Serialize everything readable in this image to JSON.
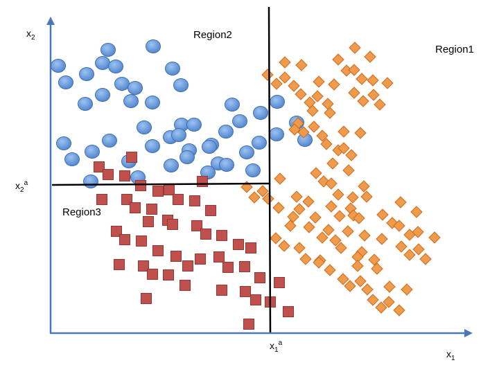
{
  "labels": {
    "region1": "Region1",
    "region2": "Region2",
    "region3": "Region3",
    "x2_axis": "x",
    "x2_axis_sub": "2",
    "x1_axis": "x",
    "x1_axis_sub": "1",
    "x2a_main": "x",
    "x2a_sub": "2",
    "x2a_sup": "a",
    "x1a_main": "x",
    "x1a_sub": "1",
    "x1a_sup": "a"
  },
  "colors": {
    "axis": "#4a7ab5",
    "boundary": "#000000",
    "circle_fill": "#5b8fd6",
    "circle_highlight": "#9cc3f2",
    "circle_stroke": "#3d6fb3",
    "square_fill": "#c0504d",
    "square_stroke": "#943634",
    "diamond_fill": "#f09a4b",
    "diamond_stroke": "#c96d1f"
  },
  "scatter": {
    "circles": [
      [
        156,
        72
      ],
      [
        221,
        67
      ],
      [
        84,
        95
      ],
      [
        148,
        91
      ],
      [
        167,
        96
      ],
      [
        125,
        107
      ],
      [
        249,
        99
      ],
      [
        95,
        119
      ],
      [
        176,
        121
      ],
      [
        195,
        127
      ],
      [
        261,
        123
      ],
      [
        148,
        137
      ],
      [
        123,
        150
      ],
      [
        189,
        146
      ],
      [
        220,
        148
      ],
      [
        335,
        151
      ],
      [
        400,
        147
      ],
      [
        376,
        163
      ],
      [
        208,
        184
      ],
      [
        346,
        175
      ],
      [
        262,
        180
      ],
      [
        246,
        198
      ],
      [
        258,
        195
      ],
      [
        280,
        180
      ],
      [
        326,
        190
      ],
      [
        428,
        177
      ],
      [
        399,
        194
      ],
      [
        440,
        202
      ],
      [
        92,
        207
      ],
      [
        158,
        203
      ],
      [
        220,
        211
      ],
      [
        273,
        217
      ],
      [
        305,
        209
      ],
      [
        302,
        212
      ],
      [
        356,
        220
      ],
      [
        374,
        206
      ],
      [
        104,
        230
      ],
      [
        133,
        219
      ],
      [
        186,
        233
      ],
      [
        270,
        227
      ],
      [
        247,
        239
      ],
      [
        315,
        236
      ],
      [
        327,
        238
      ],
      [
        300,
        249
      ],
      [
        365,
        246
      ],
      [
        199,
        256
      ],
      [
        131,
        262
      ]
    ],
    "squares": [
      [
        190,
        227
      ],
      [
        143,
        241
      ],
      [
        156,
        252
      ],
      [
        180,
        254
      ],
      [
        203,
        268
      ],
      [
        228,
        276
      ],
      [
        244,
        274
      ],
      [
        292,
        262
      ],
      [
        147,
        288
      ],
      [
        183,
        288
      ],
      [
        257,
        288
      ],
      [
        281,
        290
      ],
      [
        195,
        300
      ],
      [
        219,
        302
      ],
      [
        304,
        304
      ],
      [
        214,
        320
      ],
      [
        242,
        318
      ],
      [
        168,
        334
      ],
      [
        249,
        324
      ],
      [
        284,
        326
      ],
      [
        297,
        338
      ],
      [
        320,
        340
      ],
      [
        180,
        346
      ],
      [
        204,
        348
      ],
      [
        344,
        353
      ],
      [
        362,
        358
      ],
      [
        228,
        362
      ],
      [
        254,
        370
      ],
      [
        289,
        374
      ],
      [
        316,
        371
      ],
      [
        172,
        382
      ],
      [
        207,
        384
      ],
      [
        271,
        384
      ],
      [
        329,
        386
      ],
      [
        353,
        385
      ],
      [
        220,
        396
      ],
      [
        243,
        397
      ],
      [
        375,
        401
      ],
      [
        403,
        408
      ],
      [
        267,
        412
      ],
      [
        320,
        419
      ],
      [
        354,
        421
      ],
      [
        369,
        433
      ],
      [
        390,
        436
      ],
      [
        211,
        431
      ],
      [
        416,
        450
      ],
      [
        359,
        468
      ]
    ],
    "diamonds": [
      [
        512,
        69
      ],
      [
        488,
        86
      ],
      [
        534,
        82
      ],
      [
        411,
        90
      ],
      [
        435,
        94
      ],
      [
        500,
        102
      ],
      [
        386,
        108
      ],
      [
        411,
        112
      ],
      [
        511,
        101
      ],
      [
        522,
        114
      ],
      [
        538,
        116
      ],
      [
        559,
        120
      ],
      [
        399,
        121
      ],
      [
        424,
        124
      ],
      [
        460,
        118
      ],
      [
        482,
        122
      ],
      [
        434,
        136
      ],
      [
        458,
        139
      ],
      [
        511,
        134
      ],
      [
        539,
        137
      ],
      [
        447,
        148
      ],
      [
        473,
        150
      ],
      [
        524,
        146
      ],
      [
        548,
        151
      ],
      [
        451,
        160
      ],
      [
        476,
        163
      ],
      [
        430,
        178
      ],
      [
        425,
        187
      ],
      [
        453,
        183
      ],
      [
        438,
        191
      ],
      [
        496,
        190
      ],
      [
        465,
        196
      ],
      [
        520,
        192
      ],
      [
        471,
        208
      ],
      [
        488,
        217
      ],
      [
        507,
        224
      ],
      [
        496,
        214
      ],
      [
        480,
        236
      ],
      [
        503,
        246
      ],
      [
        456,
        250
      ],
      [
        467,
        262
      ],
      [
        478,
        265
      ],
      [
        356,
        270
      ],
      [
        379,
        276
      ],
      [
        404,
        258
      ],
      [
        367,
        285
      ],
      [
        428,
        284
      ],
      [
        445,
        291
      ],
      [
        488,
        281
      ],
      [
        509,
        285
      ],
      [
        525,
        269
      ],
      [
        529,
        284
      ],
      [
        387,
        287
      ],
      [
        402,
        300
      ],
      [
        432,
        302
      ],
      [
        478,
        298
      ],
      [
        506,
        301
      ],
      [
        578,
        292
      ],
      [
        423,
        313
      ],
      [
        455,
        314
      ],
      [
        490,
        312
      ],
      [
        510,
        311
      ],
      [
        518,
        315
      ],
      [
        552,
        310
      ],
      [
        566,
        322
      ],
      [
        601,
        306
      ],
      [
        419,
        326
      ],
      [
        446,
        328
      ],
      [
        474,
        332
      ],
      [
        502,
        334
      ],
      [
        526,
        340
      ],
      [
        576,
        326
      ],
      [
        603,
        335
      ],
      [
        551,
        345
      ],
      [
        591,
        339
      ],
      [
        627,
        343
      ],
      [
        398,
        344
      ],
      [
        410,
        355
      ],
      [
        432,
        358
      ],
      [
        465,
        343
      ],
      [
        484,
        347
      ],
      [
        492,
        358
      ],
      [
        522,
        364
      ],
      [
        579,
        356
      ],
      [
        604,
        360
      ],
      [
        441,
        374
      ],
      [
        462,
        376
      ],
      [
        516,
        371
      ],
      [
        540,
        375
      ],
      [
        460,
        379
      ],
      [
        476,
        390
      ],
      [
        591,
        368
      ],
      [
        614,
        374
      ],
      [
        516,
        384
      ],
      [
        544,
        388
      ],
      [
        495,
        403
      ],
      [
        520,
        406
      ],
      [
        505,
        413
      ],
      [
        530,
        418
      ],
      [
        562,
        414
      ],
      [
        587,
        418
      ],
      [
        538,
        433
      ],
      [
        561,
        436
      ],
      [
        550,
        444
      ],
      [
        576,
        448
      ]
    ]
  }
}
